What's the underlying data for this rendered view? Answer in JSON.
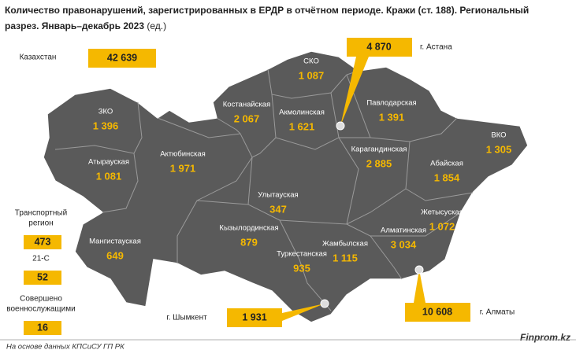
{
  "title": [
    "Количество правонарушений, зарегистрированных в ЕРДР в отчётном периоде. Кражи (ст. 188). Региональный",
    "разрез. Январь–декабрь 2023",
    "(ед.)"
  ],
  "total": {
    "name": "Казахстан",
    "value": "42 639"
  },
  "regions": [
    {
      "name": "СКО",
      "value": "1 087"
    },
    {
      "name": "Костанайская",
      "value": "2 067"
    },
    {
      "name": "Акмолинская",
      "value": "1 621"
    },
    {
      "name": "Павлодарская",
      "value": "1 391"
    },
    {
      "name": "ЗКО",
      "value": "1 396"
    },
    {
      "name": "ВКО",
      "value": "1 305"
    },
    {
      "name": "Актюбинская",
      "value": "1 971"
    },
    {
      "name": "Атырауская",
      "value": "1 081"
    },
    {
      "name": "Карагандинская",
      "value": "2 885"
    },
    {
      "name": "Абайская",
      "value": "1 854"
    },
    {
      "name": "Улытауская",
      "value": "347"
    },
    {
      "name": "Жетысуская",
      "value": "1 072"
    },
    {
      "name": "Кызылординская",
      "value": "879"
    },
    {
      "name": "Алматинская",
      "value": "3 034"
    },
    {
      "name": "Мангистауская",
      "value": "649"
    },
    {
      "name": "Жамбылская",
      "value": "1 115"
    },
    {
      "name": "Туркестанская",
      "value": "935"
    }
  ],
  "cities": [
    {
      "name": "г. Астана",
      "value": "4 870"
    },
    {
      "name": "г. Шымкент",
      "value": "1 931"
    },
    {
      "name": "г. Алматы",
      "value": "10 608"
    }
  ],
  "other": [
    {
      "name": [
        "Транспортный",
        "регион"
      ],
      "value": "473"
    },
    {
      "name": [
        "21-С"
      ],
      "value": "52"
    },
    {
      "name": [
        "Совершено",
        "военнослужащими"
      ],
      "value": "16"
    }
  ],
  "footer": {
    "source": "На основе данных КПСиСУ ГП РК",
    "brand": "Finprom.kz"
  }
}
